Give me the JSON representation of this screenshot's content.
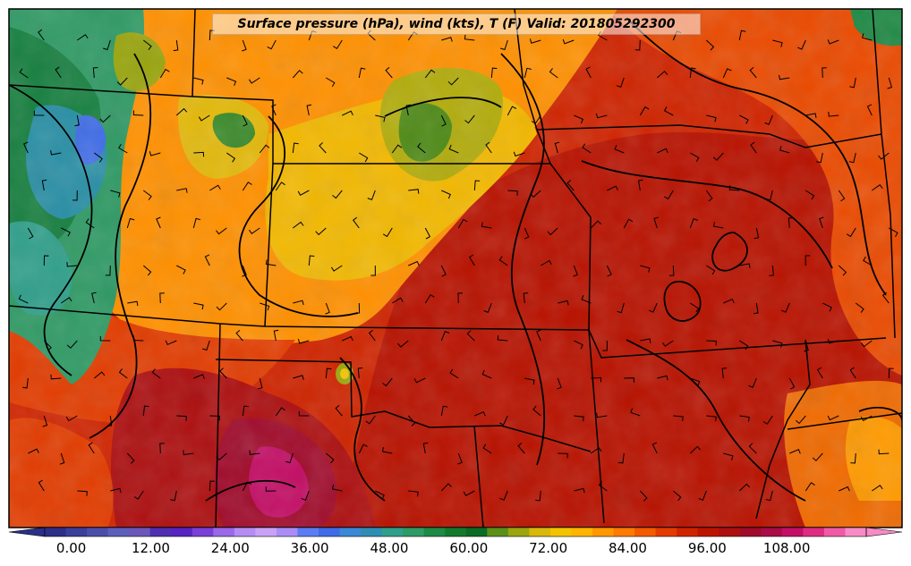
{
  "title": "Surface pressure (hPa), wind (kts), T (F) Valid: 201805292300",
  "colorbar": {
    "tick_labels": [
      "0.00",
      "12.00",
      "24.00",
      "36.00",
      "48.00",
      "60.00",
      "72.00",
      "84.00",
      "96.00",
      "108.00"
    ],
    "tick_values": [
      0,
      12,
      24,
      36,
      48,
      60,
      72,
      84,
      96,
      108
    ],
    "range": [
      -4,
      120
    ],
    "step": 4,
    "colors": [
      "#2b2f86",
      "#3a3f98",
      "#4b4ea9",
      "#5c5fba",
      "#6a57b8",
      "#4f2fb0",
      "#5624c0",
      "#7a3fd8",
      "#9a68e8",
      "#b58cf3",
      "#c9a2f7",
      "#a98df5",
      "#5b7cf3",
      "#3f6ce6",
      "#3a88d6",
      "#2f8db3",
      "#2f9f8a",
      "#2f9a64",
      "#1f8a45",
      "#137a2d",
      "#0b6b25",
      "#5a8f18",
      "#9aa50f",
      "#d8b80a",
      "#f2c300",
      "#ffb400",
      "#ff9800",
      "#ff7a00",
      "#f45a00",
      "#e23c00",
      "#cf2400",
      "#bd1400",
      "#ad0f10",
      "#a00a2a",
      "#a80b47",
      "#c30f66",
      "#de2c83",
      "#ef5aa6",
      "#f78bc5"
    ]
  }
}
